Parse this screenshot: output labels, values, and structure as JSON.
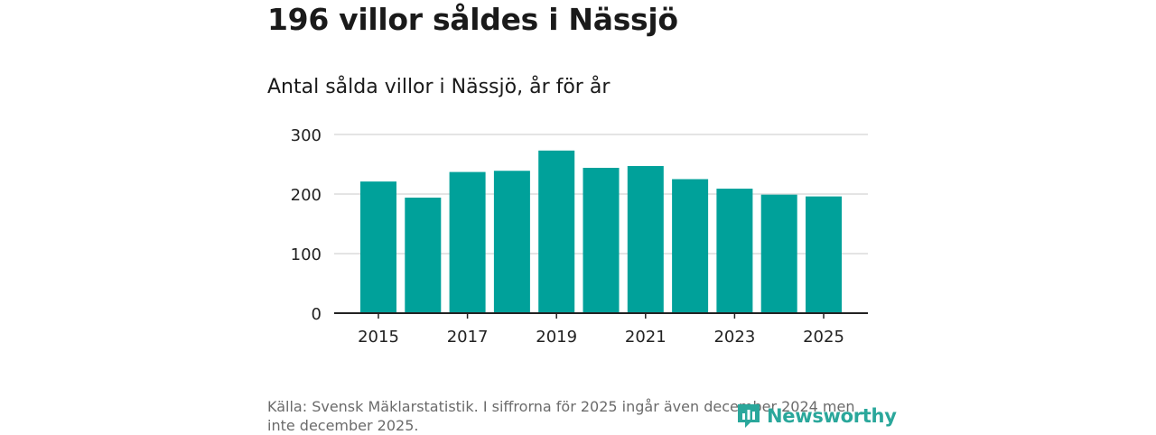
{
  "headline": "196 villor såldes i Nässjö",
  "chart_data": {
    "type": "bar",
    "title": "Antal sålda villor i Nässjö, år för år",
    "categories": [
      "2015",
      "2016",
      "2017",
      "2018",
      "2019",
      "2020",
      "2021",
      "2022",
      "2023",
      "2024",
      "2025"
    ],
    "values": [
      221,
      194,
      237,
      239,
      273,
      244,
      247,
      225,
      209,
      199,
      196
    ],
    "x_tick_labels": [
      "2015",
      "2017",
      "2019",
      "2021",
      "2023",
      "2025"
    ],
    "y_ticks": [
      0,
      100,
      200,
      300
    ],
    "ylim": [
      0,
      300
    ],
    "xlabel": "",
    "ylabel": "",
    "grid": true,
    "bar_color": "#00a19a"
  },
  "source": "Källa: Svensk Mäklarstatistik. I siffrorna för 2025 ingår även december 2024 men inte december 2025.",
  "logo": {
    "text": "Newsworthy",
    "color": "#2aa79b"
  }
}
